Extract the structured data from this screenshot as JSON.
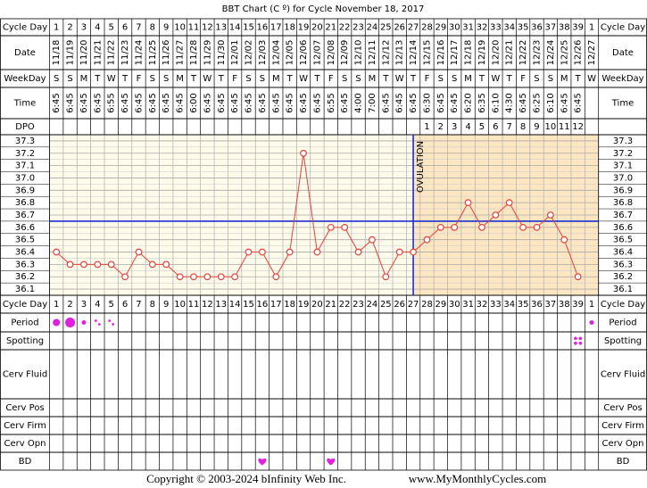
{
  "chart_data": {
    "type": "line",
    "title": "BBT Chart (C º) for Cycle November 18, 2017",
    "categories": [
      1,
      2,
      3,
      4,
      5,
      6,
      7,
      8,
      9,
      10,
      11,
      12,
      13,
      14,
      15,
      16,
      17,
      18,
      19,
      20,
      21,
      22,
      23,
      24,
      25,
      26,
      27,
      28,
      29,
      30,
      31,
      32,
      33,
      34,
      35,
      36,
      37,
      38,
      39,
      1
    ],
    "dates": [
      "11/18",
      "11/19",
      "11/20",
      "11/21",
      "11/22",
      "11/23",
      "11/24",
      "11/25",
      "11/26",
      "11/27",
      "11/28",
      "11/29",
      "11/30",
      "12/01",
      "12/02",
      "12/03",
      "12/04",
      "12/05",
      "12/06",
      "12/07",
      "12/08",
      "12/09",
      "12/10",
      "12/11",
      "12/12",
      "12/13",
      "12/14",
      "12/15",
      "12/16",
      "12/17",
      "12/18",
      "12/19",
      "12/20",
      "12/21",
      "12/22",
      "12/23",
      "12/24",
      "12/25",
      "12/26",
      "12/27"
    ],
    "weekdays": [
      "S",
      "S",
      "M",
      "T",
      "W",
      "T",
      "F",
      "S",
      "S",
      "M",
      "T",
      "W",
      "T",
      "F",
      "S",
      "S",
      "M",
      "T",
      "W",
      "T",
      "F",
      "S",
      "S",
      "M",
      "T",
      "W",
      "T",
      "F",
      "S",
      "S",
      "M",
      "T",
      "W",
      "T",
      "F",
      "S",
      "S",
      "M",
      "T",
      "W"
    ],
    "times": [
      "6:45",
      "6:45",
      "6:45",
      "6:45",
      "6:55",
      "6:45",
      "6:45",
      "6:45",
      "6:45",
      "6:45",
      "6:00",
      "6:45",
      "6:45",
      "6:45",
      "6:45",
      "6:45",
      "6:45",
      "6:45",
      "6:45",
      "6:45",
      "6:55",
      "6:45",
      "4:00",
      "7:00",
      "6:45",
      "6:45",
      "6:45",
      "6:30",
      "6:45",
      "6:45",
      "6:20",
      "6:35",
      "6:10",
      "4:30",
      "6:45",
      "6:25",
      "6:10",
      "6:45",
      "6:45",
      null
    ],
    "dpo": [
      null,
      null,
      null,
      null,
      null,
      null,
      null,
      null,
      null,
      null,
      null,
      null,
      null,
      null,
      null,
      null,
      null,
      null,
      null,
      null,
      null,
      null,
      null,
      null,
      null,
      null,
      null,
      1,
      2,
      3,
      4,
      5,
      6,
      7,
      8,
      9,
      10,
      11,
      12,
      null
    ],
    "series": [
      {
        "color": "#e8403a",
        "values": [
          36.4,
          36.3,
          36.3,
          36.3,
          36.3,
          36.2,
          36.4,
          36.3,
          36.3,
          36.2,
          36.2,
          36.2,
          36.2,
          36.2,
          36.4,
          36.4,
          36.2,
          36.4,
          37.2,
          36.4,
          36.6,
          36.6,
          36.4,
          36.5,
          36.2,
          36.4,
          36.4,
          36.5,
          36.6,
          36.6,
          36.8,
          36.6,
          36.7,
          36.8,
          36.6,
          36.6,
          36.7,
          36.5,
          36.2,
          null
        ]
      }
    ],
    "ylim": [
      36.05,
      37.35
    ],
    "yticks": [
      37.3,
      37.2,
      37.1,
      {
        "value": 37,
        "label": "37.0"
      },
      36.9,
      36.8,
      36.7,
      36.6,
      36.5,
      36.4,
      36.3,
      36.2,
      36.1
    ],
    "coverline": {
      "value": 36.65,
      "color": "#1a2fd0"
    },
    "ovulation": {
      "text": "OVULATION",
      "day": 27
    },
    "background": "#fefbea",
    "luteal_color": "#fde6c2",
    "row_labels": {
      "cycle_day": "Cycle Day",
      "date": "Date",
      "weekday": "WeekDay",
      "time": "Time",
      "dpo": "DPO",
      "period": "Period",
      "spotting": "Spotting",
      "cerv_fluid": "Cerv Fluid",
      "cerv_pos": "Cerv Pos",
      "cerv_firm": "Cerv Firm",
      "cerv_opn": "Cerv Opn",
      "bd": "BD"
    },
    "period": [
      {
        "column": 1,
        "level": 2
      },
      {
        "column": 2,
        "level": 3
      },
      {
        "column": 3,
        "level": 1
      },
      {
        "column": 4,
        "level": 0.5
      },
      {
        "column": 5,
        "level": 0.5
      },
      {
        "column": 40,
        "level": 1
      }
    ],
    "spotting": [
      {
        "column": 39
      }
    ],
    "bd": [
      {
        "column": 16
      },
      {
        "column": 21
      }
    ],
    "marker_color": "#e020e0"
  },
  "footer": {
    "copyright": "Copyright © 2003-2024 bInfinity Web Inc.",
    "site": "www.MyMonthlyCycles.com"
  }
}
